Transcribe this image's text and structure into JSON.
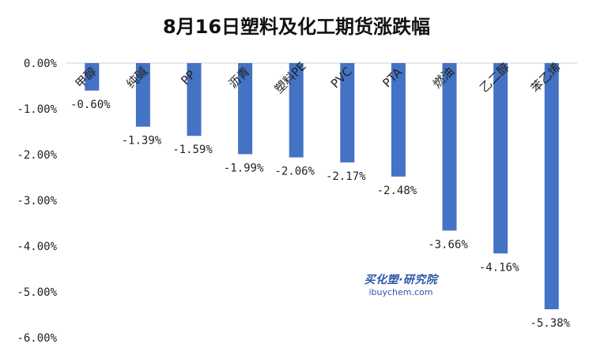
{
  "chart_data": {
    "type": "bar",
    "title": "8月16日塑料及化工期货涨跌幅",
    "categories": [
      "甲醇",
      "纯碱",
      "PP",
      "沥青",
      "塑料PE",
      "PVC",
      "PTA",
      "燃油",
      "乙二醇",
      "苯乙烯"
    ],
    "values": [
      -0.6,
      -1.39,
      -1.59,
      -1.99,
      -2.06,
      -2.17,
      -2.48,
      -3.66,
      -4.16,
      -5.38
    ],
    "data_labels": [
      "-0.60%",
      "-1.39%",
      "-1.59%",
      "-1.99%",
      "-2.06%",
      "-2.17%",
      "-2.48%",
      "-3.66%",
      "-4.16%",
      "-5.38%"
    ],
    "yticks": [
      "0.00%",
      "-1.00%",
      "-2.00%",
      "-3.00%",
      "-4.00%",
      "-5.00%",
      "-6.00%"
    ],
    "ylim": [
      -6,
      0
    ],
    "xlabel": "",
    "ylabel": "",
    "grid": false,
    "bar_color": "#4472c4"
  },
  "watermark": {
    "cn": "买化塑·研究院",
    "en": "ibuychem.com"
  }
}
